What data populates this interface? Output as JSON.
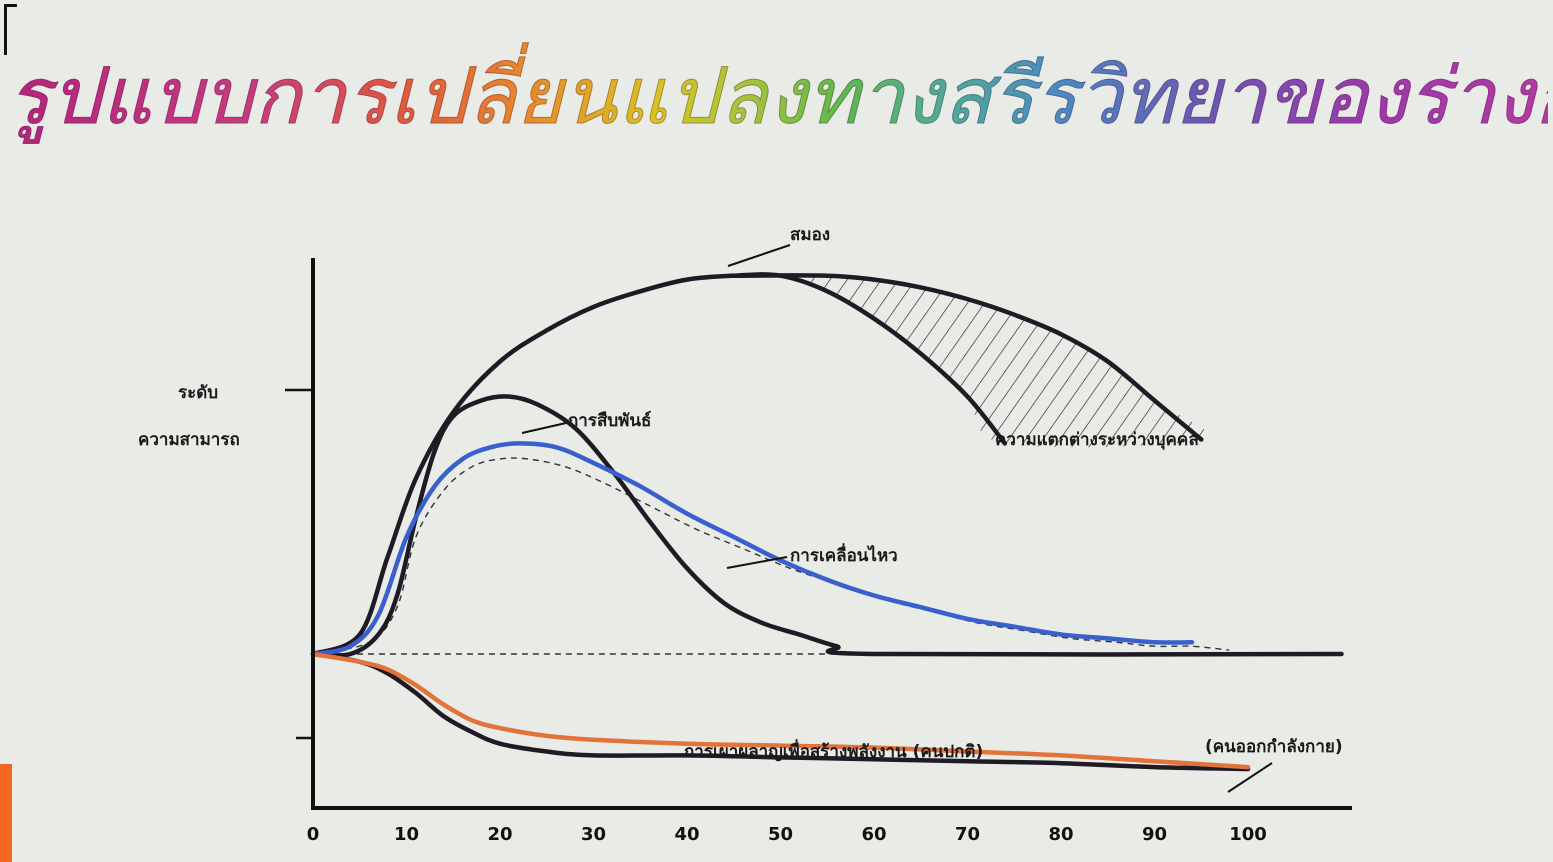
{
  "title": "รูปแบบการเปลี่ยนแปลงทางสรีรวิทยาของร่างกายตามอายุ",
  "chart_data": {
    "type": "line",
    "title": "รูปแบบการเปลี่ยนแปลงทางสรีรวิทยาของร่างกายตามอายุ",
    "ylabel": [
      "ระดับ",
      "ความสามารถ"
    ],
    "xlabel": "",
    "x_ticks": [
      "0",
      "10",
      "20",
      "30",
      "40",
      "50",
      "60",
      "70",
      "80",
      "90",
      "100"
    ],
    "xlim": [
      0,
      110
    ],
    "ylim": [
      -0.3,
      1.05
    ],
    "legend": "none",
    "series": [
      {
        "name": "สมอง",
        "color": "#1f1a24",
        "points": [
          [
            0,
            0
          ],
          [
            5,
            0.05
          ],
          [
            8,
            0.25
          ],
          [
            11,
            0.45
          ],
          [
            15,
            0.62
          ],
          [
            20,
            0.75
          ],
          [
            25,
            0.83
          ],
          [
            30,
            0.89
          ],
          [
            35,
            0.93
          ],
          [
            40,
            0.96
          ],
          [
            45,
            0.97
          ],
          [
            50,
            0.97
          ],
          [
            55,
            0.93
          ],
          [
            60,
            0.86
          ],
          [
            65,
            0.77
          ],
          [
            70,
            0.66
          ],
          [
            74,
            0.54
          ]
        ]
      },
      {
        "name": "ความแตกต่างระหว่างบุคคล",
        "color": "#1f1a24",
        "points": [
          [
            45,
            0.97
          ],
          [
            55,
            0.97
          ],
          [
            60,
            0.96
          ],
          [
            65,
            0.94
          ],
          [
            70,
            0.91
          ],
          [
            75,
            0.87
          ],
          [
            80,
            0.82
          ],
          [
            85,
            0.75
          ],
          [
            90,
            0.65
          ],
          [
            95,
            0.55
          ],
          [
            105,
            0.54
          ]
        ]
      },
      {
        "name": "การสืบพันธ์",
        "color": "#1f1a24",
        "points": [
          [
            0,
            0
          ],
          [
            4,
            0
          ],
          [
            7,
            0.05
          ],
          [
            9,
            0.15
          ],
          [
            11,
            0.35
          ],
          [
            13,
            0.52
          ],
          [
            15,
            0.61
          ],
          [
            18,
            0.65
          ],
          [
            21,
            0.66
          ],
          [
            24,
            0.64
          ],
          [
            28,
            0.58
          ],
          [
            32,
            0.47
          ],
          [
            36,
            0.34
          ],
          [
            40,
            0.22
          ],
          [
            44,
            0.13
          ],
          [
            48,
            0.08
          ],
          [
            52,
            0.05
          ],
          [
            56,
            0.02
          ],
          [
            60,
            0
          ],
          [
            110,
            0
          ]
        ]
      },
      {
        "name": "การเคลื่อนไหว",
        "color": "#3a5fcf",
        "points": [
          [
            0,
            0
          ],
          [
            4,
            0.02
          ],
          [
            7,
            0.1
          ],
          [
            10,
            0.3
          ],
          [
            13,
            0.43
          ],
          [
            16,
            0.5
          ],
          [
            19,
            0.53
          ],
          [
            22,
            0.54
          ],
          [
            26,
            0.53
          ],
          [
            30,
            0.49
          ],
          [
            35,
            0.43
          ],
          [
            40,
            0.36
          ],
          [
            45,
            0.3
          ],
          [
            50,
            0.24
          ],
          [
            55,
            0.19
          ],
          [
            60,
            0.15
          ],
          [
            65,
            0.12
          ],
          [
            70,
            0.09
          ],
          [
            75,
            0.07
          ],
          [
            80,
            0.05
          ],
          [
            85,
            0.04
          ],
          [
            90,
            0.03
          ],
          [
            94,
            0.03
          ]
        ]
      },
      {
        "name": "การเผาผลาญเพื่อสร้างพลังงาน (คนปกติ)",
        "color": "#1f1a24",
        "points": [
          [
            0,
            0
          ],
          [
            5,
            -0.02
          ],
          [
            8,
            -0.05
          ],
          [
            11,
            -0.1
          ],
          [
            14,
            -0.16
          ],
          [
            17,
            -0.2
          ],
          [
            20,
            -0.23
          ],
          [
            25,
            -0.25
          ],
          [
            30,
            -0.26
          ],
          [
            40,
            -0.26
          ],
          [
            50,
            -0.265
          ],
          [
            60,
            -0.27
          ],
          [
            70,
            -0.275
          ],
          [
            80,
            -0.28
          ],
          [
            90,
            -0.29
          ],
          [
            100,
            -0.295
          ]
        ]
      },
      {
        "name": "(คนออกกำลังกาย)",
        "color": "#e2733a",
        "points": [
          [
            0,
            0
          ],
          [
            5,
            -0.02
          ],
          [
            8,
            -0.04
          ],
          [
            11,
            -0.08
          ],
          [
            14,
            -0.13
          ],
          [
            17,
            -0.17
          ],
          [
            20,
            -0.19
          ],
          [
            25,
            -0.21
          ],
          [
            30,
            -0.22
          ],
          [
            40,
            -0.23
          ],
          [
            50,
            -0.235
          ],
          [
            60,
            -0.24
          ],
          [
            70,
            -0.25
          ],
          [
            80,
            -0.26
          ],
          [
            90,
            -0.275
          ],
          [
            100,
            -0.29
          ]
        ]
      }
    ],
    "reference_lines": [
      {
        "name": "baseline",
        "style": "dashed",
        "points": [
          [
            0,
            0
          ],
          [
            110,
            0
          ]
        ]
      },
      {
        "name": "dashed-curve",
        "style": "dashed",
        "points": [
          [
            0,
            0
          ],
          [
            6,
            0.03
          ],
          [
            9,
            0.12
          ],
          [
            11,
            0.3
          ],
          [
            14,
            0.42
          ],
          [
            17,
            0.48
          ],
          [
            20,
            0.5
          ],
          [
            23,
            0.5
          ],
          [
            27,
            0.48
          ],
          [
            31,
            0.44
          ],
          [
            36,
            0.38
          ],
          [
            41,
            0.32
          ],
          [
            46,
            0.27
          ],
          [
            51,
            0.22
          ],
          [
            56,
            0.18
          ],
          [
            61,
            0.14
          ],
          [
            66,
            0.11
          ],
          [
            71,
            0.08
          ],
          [
            76,
            0.06
          ],
          [
            81,
            0.04
          ],
          [
            86,
            0.03
          ],
          [
            90,
            0.02
          ],
          [
            94,
            0.02
          ],
          [
            98,
            0.01
          ]
        ]
      }
    ]
  }
}
